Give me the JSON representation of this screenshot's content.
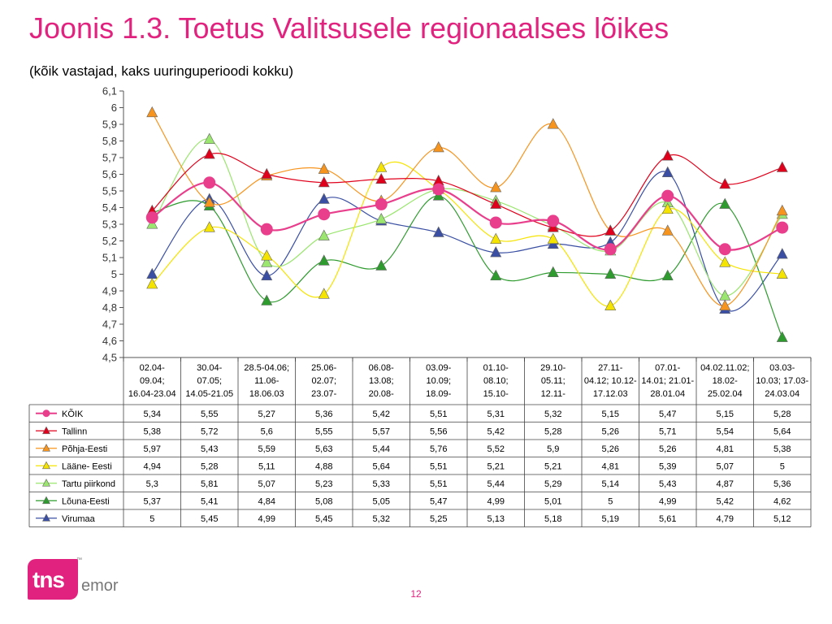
{
  "page": {
    "title": "Joonis 1.3. Toetus Valitsusele regionaalses lõikes",
    "subtitle": "(kõik vastajad, kaks uuringuperioodi kokku)",
    "page_number": "12",
    "logo_text": "tns",
    "logo_suffix": "emor",
    "logo_tm": "™"
  },
  "chart_data": {
    "type": "line",
    "ylim": [
      4.5,
      6.1
    ],
    "ystep": 0.1,
    "grid": false,
    "legend": "table-below",
    "categories": [
      [
        "02.04-",
        "09.04;",
        "16.04-23.04"
      ],
      [
        "30.04-",
        "07.05;",
        "14.05-21.05"
      ],
      [
        "28.5-04.06;",
        "11.06-",
        "18.06.03"
      ],
      [
        "25.06-",
        "02.07;",
        "23.07-"
      ],
      [
        "06.08-",
        "13.08;",
        "20.08-"
      ],
      [
        "03.09-",
        "10.09;",
        "18.09-"
      ],
      [
        "01.10-",
        "08.10;",
        "15.10-"
      ],
      [
        "29.10-",
        "05.11;",
        "12.11-"
      ],
      [
        "27.11-",
        "04.12; 10.12-",
        "17.12.03"
      ],
      [
        "07.01-",
        "14.01; 21.01-",
        "28.01.04"
      ],
      [
        "04.02.11.02;",
        "18.02-",
        "25.02.04"
      ],
      [
        "03.03-",
        "10.03; 17.03-",
        "24.03.04"
      ]
    ],
    "series": [
      {
        "name": "KÕIK",
        "color": "#e83e8c",
        "marker": "circle",
        "values": [
          5.34,
          5.55,
          5.27,
          5.36,
          5.42,
          5.51,
          5.31,
          5.32,
          5.15,
          5.47,
          5.15,
          5.28
        ],
        "labels": [
          "5,34",
          "5,55",
          "5,27",
          "5,36",
          "5,42",
          "5,51",
          "5,31",
          "5,32",
          "5,15",
          "5,47",
          "5,15",
          "5,28"
        ]
      },
      {
        "name": "Tallinn",
        "color": "#e0001b",
        "marker": "triangle",
        "values": [
          5.38,
          5.72,
          5.6,
          5.55,
          5.57,
          5.56,
          5.42,
          5.28,
          5.26,
          5.71,
          5.54,
          5.64
        ],
        "labels": [
          "5,38",
          "5,72",
          "5,6",
          "5,55",
          "5,57",
          "5,56",
          "5,42",
          "5,28",
          "5,26",
          "5,71",
          "5,54",
          "5,64"
        ]
      },
      {
        "name": "Põhja-Eesti",
        "color": "#f7941d",
        "marker": "triangle",
        "values": [
          5.97,
          5.43,
          5.59,
          5.63,
          5.44,
          5.76,
          5.52,
          5.9,
          5.26,
          5.26,
          4.81,
          5.38
        ],
        "labels": [
          "5,97",
          "5,43",
          "5,59",
          "5,63",
          "5,44",
          "5,76",
          "5,52",
          "5,9",
          "5,26",
          "5,26",
          "4,81",
          "5,38"
        ]
      },
      {
        "name": "Lääne- Eesti",
        "color": "#f5e300",
        "marker": "triangle",
        "values": [
          4.94,
          5.28,
          5.11,
          4.88,
          5.64,
          5.51,
          5.21,
          5.21,
          4.81,
          5.39,
          5.07,
          5.0
        ],
        "labels": [
          "4,94",
          "5,28",
          "5,11",
          "4,88",
          "5,64",
          "5,51",
          "5,21",
          "5,21",
          "4,81",
          "5,39",
          "5,07",
          "5"
        ]
      },
      {
        "name": "Tartu piirkond",
        "color": "#9ae66e",
        "marker": "triangle",
        "values": [
          5.3,
          5.81,
          5.07,
          5.23,
          5.33,
          5.51,
          5.44,
          5.29,
          5.14,
          5.43,
          4.87,
          5.36
        ],
        "labels": [
          "5,3",
          "5,81",
          "5,07",
          "5,23",
          "5,33",
          "5,51",
          "5,44",
          "5,29",
          "5,14",
          "5,43",
          "4,87",
          "5,36"
        ]
      },
      {
        "name": "Lõuna-Eesti",
        "color": "#2e9b2e",
        "marker": "triangle",
        "values": [
          5.37,
          5.41,
          4.84,
          5.08,
          5.05,
          5.47,
          4.99,
          5.01,
          5.0,
          4.99,
          5.42,
          4.62
        ],
        "labels": [
          "5,37",
          "5,41",
          "4,84",
          "5,08",
          "5,05",
          "5,47",
          "4,99",
          "5,01",
          "5",
          "4,99",
          "5,42",
          "4,62"
        ]
      },
      {
        "name": "Virumaa",
        "color": "#3a4fa3",
        "marker": "triangle",
        "values": [
          5.0,
          5.45,
          4.99,
          5.45,
          5.32,
          5.25,
          5.13,
          5.18,
          5.19,
          5.61,
          4.79,
          5.12
        ],
        "labels": [
          "5",
          "5,45",
          "4,99",
          "5,45",
          "5,32",
          "5,25",
          "5,13",
          "5,18",
          "5,19",
          "5,61",
          "4,79",
          "5,12"
        ]
      }
    ]
  }
}
